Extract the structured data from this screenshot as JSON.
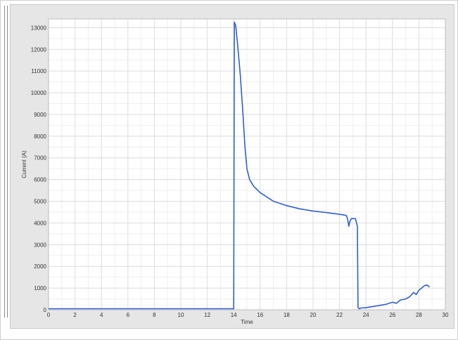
{
  "chart_data": {
    "type": "line",
    "title": "",
    "xlabel": "Time",
    "ylabel": "Current (A)",
    "xlim": [
      0,
      30
    ],
    "ylim": [
      0,
      13400
    ],
    "grid": true,
    "line_color": "#2f5fd0",
    "x_ticks": [
      0,
      2,
      4,
      6,
      8,
      10,
      12,
      14,
      16,
      18,
      20,
      22,
      24,
      26,
      28,
      30
    ],
    "y_ticks": [
      0,
      1000,
      2000,
      3000,
      4000,
      5000,
      6000,
      7000,
      8000,
      9000,
      10000,
      11000,
      12000,
      13000
    ],
    "series": [
      {
        "x": [
          0,
          14.0,
          14.05,
          14.15,
          14.3,
          14.5,
          14.7,
          14.85,
          15.0,
          15.2,
          15.5,
          16.0,
          16.5,
          17.0,
          18.0,
          19.0,
          20.0,
          21.0,
          22.0,
          22.5,
          22.6,
          22.7,
          22.8,
          22.9,
          23.0,
          23.2,
          23.35,
          23.4,
          23.5,
          23.6,
          24.0,
          24.5,
          25.0,
          25.5,
          26.0,
          26.3,
          26.6,
          27.0,
          27.3,
          27.6,
          27.8,
          28.0,
          28.2,
          28.4,
          28.6,
          28.8
        ],
        "y": [
          50,
          50,
          13250,
          13100,
          12200,
          10800,
          9000,
          7500,
          6500,
          6000,
          5700,
          5400,
          5200,
          5000,
          4800,
          4650,
          4550,
          4480,
          4400,
          4350,
          4200,
          3850,
          4100,
          4200,
          4200,
          4200,
          3850,
          100,
          50,
          80,
          100,
          150,
          200,
          250,
          350,
          300,
          450,
          500,
          600,
          800,
          700,
          900,
          1000,
          1100,
          1150,
          1050
        ]
      }
    ]
  }
}
